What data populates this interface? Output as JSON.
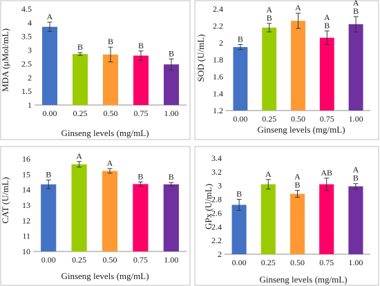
{
  "figure": {
    "bar_colors": [
      "#4472c4",
      "#99cc00",
      "#ff9933",
      "#ff0066",
      "#7030a0"
    ]
  },
  "chart_data": [
    {
      "type": "bar",
      "categories": [
        "0.00",
        "0.25",
        "0.50",
        "0.75",
        "1.00"
      ],
      "values": [
        3.85,
        2.86,
        2.84,
        2.8,
        2.48
      ],
      "errors": [
        0.17,
        0.05,
        0.27,
        0.17,
        0.2
      ],
      "letters": [
        "A",
        "B",
        "B",
        "B",
        "B"
      ],
      "xlabel": "Ginseng levels (mg/mL)",
      "ylabel": "MDA (μMol/mL)",
      "ylim": [
        1,
        4.5
      ],
      "yticks": [
        "1",
        "1.5",
        "2",
        "2.5",
        "3",
        "3.5",
        "4",
        "4.5"
      ],
      "grid": false
    },
    {
      "type": "bar",
      "categories": [
        "0.00",
        "0.25",
        "0.50",
        "0.75",
        "1.00"
      ],
      "values": [
        1.95,
        2.18,
        2.26,
        2.06,
        2.22
      ],
      "errors": [
        0.03,
        0.05,
        0.09,
        0.08,
        0.09
      ],
      "letters": [
        "B",
        "A\nB",
        "A",
        "A\nB",
        "A\nB"
      ],
      "xlabel": "Ginseng levels (mg/mL)",
      "ylabel": "SOD (U/mL)",
      "ylim": [
        1.2,
        2.4
      ],
      "yticks": [
        "1.2",
        "1.4",
        "1.6",
        "1.8",
        "2",
        "2.2",
        "2.4"
      ],
      "grid": false
    },
    {
      "type": "bar",
      "categories": [
        "0.00",
        "0.25",
        "0.50",
        "0.75",
        "1.00"
      ],
      "values": [
        14.35,
        15.65,
        15.22,
        14.37,
        14.35
      ],
      "errors": [
        0.28,
        0.18,
        0.15,
        0.14,
        0.12
      ],
      "letters": [
        "B",
        "A",
        "A",
        "B",
        "B"
      ],
      "xlabel": "Ginseng levels (mg/mL)",
      "ylabel": "CAT (U/mL)",
      "ylim": [
        10,
        16
      ],
      "yticks": [
        "10",
        "11",
        "12",
        "13",
        "14",
        "15",
        "16"
      ],
      "grid": false
    },
    {
      "type": "bar",
      "categories": [
        "0.00",
        "0.25",
        "0.50",
        "0.75",
        "1.00"
      ],
      "values": [
        2.72,
        3.02,
        2.88,
        3.02,
        2.99
      ],
      "errors": [
        0.08,
        0.07,
        0.05,
        0.09,
        0.04
      ],
      "letters": [
        "B",
        "A",
        "A\nB",
        "AB",
        "A\nB"
      ],
      "xlabel": "Ginseng levels (mg/mL)",
      "ylabel": "GPx (U/mL)",
      "ylim": [
        2,
        3.4
      ],
      "yticks": [
        "2",
        "2.2",
        "2.4",
        "2.6",
        "2.8",
        "3",
        "3.2",
        "3.4"
      ],
      "grid": false
    }
  ]
}
